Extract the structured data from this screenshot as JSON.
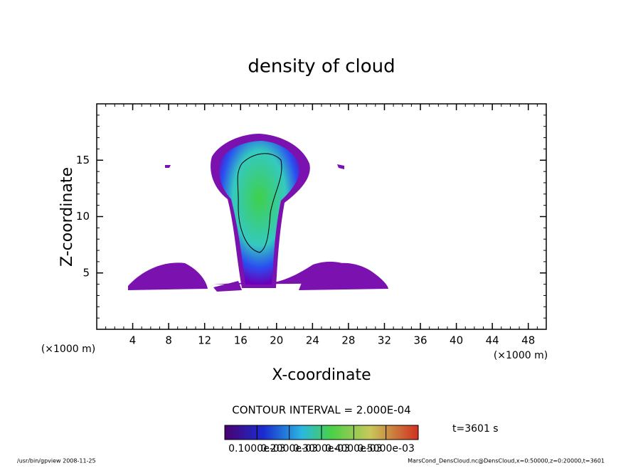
{
  "chart_data": {
    "type": "contour",
    "title": "density of cloud",
    "x_label": "X-coordinate",
    "y_label": "Z-coordinate",
    "x_unit_left": "(×1000 m)",
    "x_unit_right": "(×1000 m)",
    "xlim": [
      0,
      50
    ],
    "xticks": [
      4,
      8,
      12,
      16,
      20,
      24,
      28,
      32,
      36,
      40,
      44,
      48
    ],
    "ylim": [
      0,
      20
    ],
    "yticks": [
      5,
      10,
      15
    ],
    "contour_interval": "CONTOUR INTERVAL = 2.000E-04",
    "time_label": "t=3601 s",
    "colorbar": {
      "lim": [
        0,
        0.0006
      ],
      "ticks": [
        {
          "value": 0.0001,
          "label": "0.1000e-03"
        },
        {
          "value": 0.0002,
          "label": "0.2000e-03"
        },
        {
          "value": 0.0003,
          "label": "0.3000e-03"
        },
        {
          "value": 0.0004,
          "label": "0.4000e-03"
        },
        {
          "value": 0.0005,
          "label": "0.5000e-03"
        }
      ]
    },
    "footer_left": "/usr/bin/gpview  2008-11-25",
    "footer_right": "MarsCond_DensCloud.nc@DensCloud,x=0:50000,z=0:20000,t=3601"
  }
}
